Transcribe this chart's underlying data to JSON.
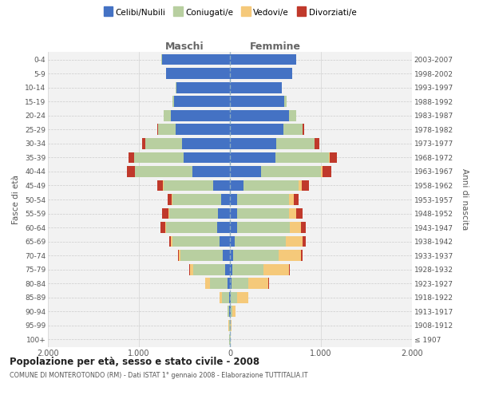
{
  "age_groups": [
    "100+",
    "95-99",
    "90-94",
    "85-89",
    "80-84",
    "75-79",
    "70-74",
    "65-69",
    "60-64",
    "55-59",
    "50-54",
    "45-49",
    "40-44",
    "35-39",
    "30-34",
    "25-29",
    "20-24",
    "15-19",
    "10-14",
    "5-9",
    "0-4"
  ],
  "birth_years": [
    "≤ 1907",
    "1908-1912",
    "1913-1917",
    "1918-1922",
    "1923-1927",
    "1928-1932",
    "1933-1937",
    "1938-1942",
    "1943-1947",
    "1948-1952",
    "1953-1957",
    "1958-1962",
    "1963-1967",
    "1968-1972",
    "1973-1977",
    "1978-1982",
    "1983-1987",
    "1988-1992",
    "1993-1997",
    "1998-2002",
    "2003-2007"
  ],
  "male_celibi": [
    2,
    3,
    5,
    10,
    25,
    50,
    80,
    110,
    140,
    130,
    100,
    180,
    410,
    510,
    530,
    600,
    650,
    610,
    590,
    700,
    750
  ],
  "male_coniugati": [
    4,
    8,
    18,
    75,
    190,
    350,
    460,
    520,
    560,
    535,
    530,
    550,
    630,
    545,
    400,
    190,
    75,
    18,
    4,
    3,
    3
  ],
  "male_vedovi": [
    1,
    3,
    7,
    28,
    55,
    38,
    22,
    18,
    14,
    9,
    7,
    4,
    4,
    2,
    1,
    1,
    0,
    0,
    0,
    0,
    0
  ],
  "male_divorziati": [
    0,
    0,
    0,
    0,
    4,
    5,
    9,
    22,
    48,
    75,
    48,
    65,
    85,
    55,
    38,
    9,
    4,
    2,
    0,
    0,
    0
  ],
  "female_nubili": [
    2,
    3,
    5,
    12,
    18,
    28,
    38,
    55,
    75,
    75,
    75,
    150,
    340,
    500,
    510,
    590,
    645,
    600,
    570,
    685,
    725
  ],
  "female_coniugate": [
    4,
    7,
    18,
    65,
    180,
    340,
    495,
    555,
    585,
    575,
    575,
    605,
    660,
    590,
    420,
    210,
    82,
    22,
    4,
    3,
    3
  ],
  "female_vedove": [
    2,
    10,
    38,
    125,
    220,
    280,
    250,
    192,
    125,
    75,
    48,
    38,
    18,
    9,
    4,
    2,
    1,
    0,
    0,
    0,
    0
  ],
  "female_divorziate": [
    0,
    0,
    0,
    4,
    9,
    9,
    14,
    28,
    48,
    75,
    58,
    75,
    95,
    75,
    48,
    14,
    4,
    2,
    0,
    0,
    0
  ],
  "col_celibi": "#4472c4",
  "col_coniugati": "#b8cfa0",
  "col_vedovi": "#f5c97a",
  "col_divorziati": "#c0392b",
  "legend_labels": [
    "Celibi/Nubili",
    "Coniugati/e",
    "Vedovi/e",
    "Divorziati/e"
  ],
  "xlim": 2000,
  "title": "Popolazione per età, sesso e stato civile - 2008",
  "subtitle": "COMUNE DI MONTEROTONDO (RM) - Dati ISTAT 1° gennaio 2008 - Elaborazione TUTTITALIA.IT",
  "label_maschi": "Maschi",
  "label_femmine": "Femmine",
  "ylabel_left": "Fasce di età",
  "ylabel_right": "Anni di nascita",
  "plot_bg": "#f2f2f2",
  "fig_bg": "#ffffff"
}
